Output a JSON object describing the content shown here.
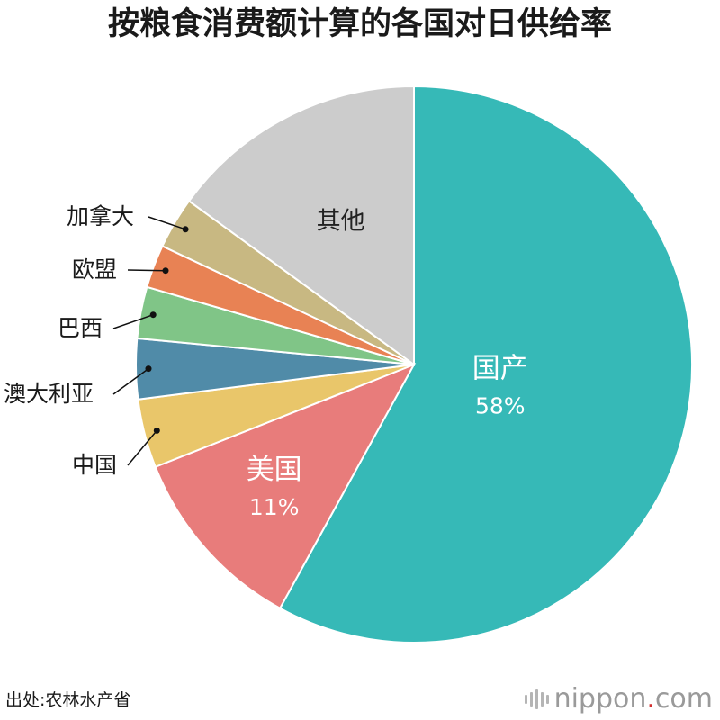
{
  "title": "按粮食消费额计算的各国对日供给率",
  "source": "出处:农林水产省",
  "brand": {
    "name": "nippon",
    "tld": "com",
    "dot": "."
  },
  "chart_data": {
    "type": "pie",
    "title": "按粮食消费额计算的各国对日供给率",
    "start_angle_deg": 0,
    "direction": "clockwise",
    "slices": [
      {
        "label": "国产",
        "value": 58,
        "value_label": "58%",
        "color": "#36b9b7",
        "label_style": "inside"
      },
      {
        "label": "美国",
        "value": 11,
        "value_label": "11%",
        "color": "#e87c7b",
        "label_style": "inside"
      },
      {
        "label": "中国",
        "value": 4,
        "color": "#e9c66a",
        "label_style": "leader"
      },
      {
        "label": "澳大利亚",
        "value": 3.5,
        "color": "#508ba8",
        "label_style": "leader"
      },
      {
        "label": "巴西",
        "value": 3,
        "color": "#80c587",
        "label_style": "leader"
      },
      {
        "label": "欧盟",
        "value": 2.5,
        "color": "#e88254",
        "label_style": "leader"
      },
      {
        "label": "加拿大",
        "value": 3,
        "color": "#c8b882",
        "label_style": "leader"
      },
      {
        "label": "其他",
        "value": 15,
        "color": "#cccccc",
        "label_style": "inside"
      }
    ]
  }
}
